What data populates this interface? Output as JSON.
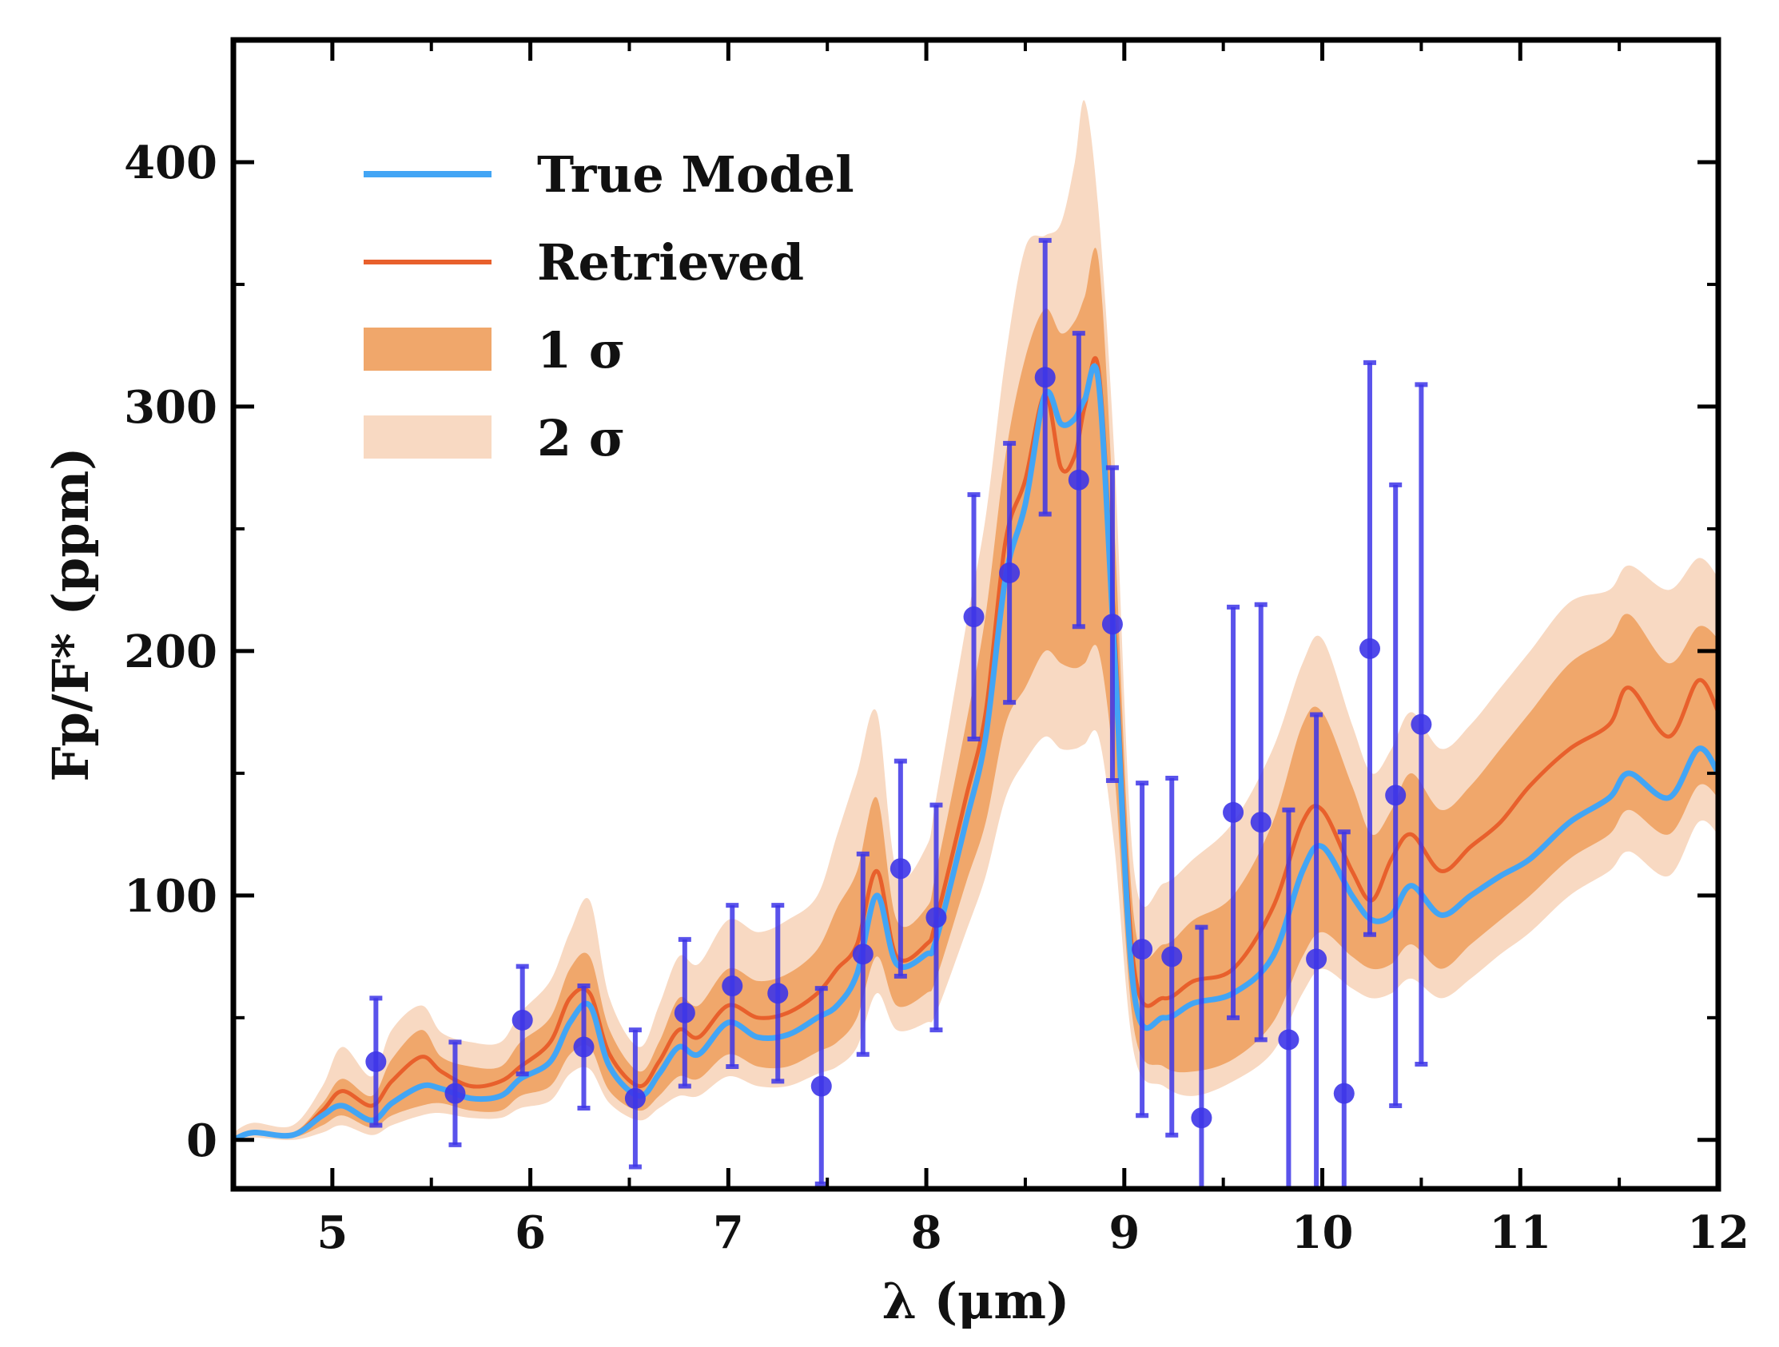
{
  "chart_data": {
    "type": "line",
    "xlabel": "λ (μm)",
    "ylabel": "Fp/F* (ppm)",
    "xlim": [
      4.5,
      12
    ],
    "ylim": [
      -20,
      450
    ],
    "x_ticks": [
      5,
      6,
      7,
      8,
      9,
      10,
      11,
      12
    ],
    "y_ticks": [
      0,
      100,
      200,
      300,
      400
    ],
    "grid": false,
    "legend_position": "top-left",
    "legend": [
      "True Model",
      "Retrieved",
      "1 σ",
      "2 σ"
    ],
    "colors": {
      "true_model": "#42a5f5",
      "retrieved": "#e8602c",
      "sigma1": "#f0a76b",
      "sigma2": "#f8d9c2",
      "data": "#3d35e8"
    },
    "series": [
      {
        "name": "True Model",
        "x": [
          4.5,
          4.6,
          4.8,
          4.95,
          5.05,
          5.2,
          5.3,
          5.45,
          5.55,
          5.7,
          5.85,
          5.95,
          6.1,
          6.2,
          6.3,
          6.4,
          6.55,
          6.65,
          6.75,
          6.85,
          7.0,
          7.15,
          7.3,
          7.45,
          7.55,
          7.65,
          7.75,
          7.85,
          8.0,
          8.05,
          8.2,
          8.3,
          8.4,
          8.5,
          8.6,
          8.68,
          8.75,
          8.8,
          8.87,
          8.95,
          9.05,
          9.2,
          9.35,
          9.55,
          9.75,
          9.9,
          10.0,
          10.15,
          10.25,
          10.35,
          10.45,
          10.6,
          10.75,
          10.9,
          11.05,
          11.25,
          11.45,
          11.55,
          11.75,
          11.9,
          12.0
        ],
        "values": [
          0,
          3,
          2,
          10,
          14,
          8,
          15,
          22,
          21,
          17,
          18,
          25,
          32,
          48,
          55,
          30,
          18,
          27,
          38,
          35,
          48,
          42,
          43,
          50,
          55,
          68,
          100,
          72,
          76,
          82,
          130,
          165,
          230,
          260,
          305,
          293,
          295,
          303,
          310,
          200,
          60,
          50,
          56,
          60,
          75,
          110,
          120,
          100,
          90,
          92,
          104,
          92,
          100,
          108,
          115,
          130,
          140,
          150,
          140,
          160,
          150
        ]
      },
      {
        "name": "Retrieved",
        "x": [
          4.5,
          4.6,
          4.8,
          4.95,
          5.05,
          5.2,
          5.3,
          5.45,
          5.55,
          5.7,
          5.85,
          5.95,
          6.1,
          6.2,
          6.3,
          6.4,
          6.55,
          6.65,
          6.75,
          6.85,
          7.0,
          7.15,
          7.3,
          7.45,
          7.55,
          7.65,
          7.75,
          7.85,
          8.0,
          8.05,
          8.2,
          8.3,
          8.4,
          8.5,
          8.6,
          8.68,
          8.75,
          8.8,
          8.87,
          8.95,
          9.05,
          9.2,
          9.35,
          9.55,
          9.75,
          9.9,
          10.0,
          10.15,
          10.25,
          10.35,
          10.45,
          10.6,
          10.75,
          10.9,
          11.05,
          11.25,
          11.45,
          11.55,
          11.75,
          11.9,
          12.0
        ],
        "values": [
          0,
          3,
          2,
          12,
          20,
          14,
          24,
          34,
          28,
          22,
          24,
          30,
          40,
          58,
          60,
          35,
          22,
          32,
          45,
          42,
          55,
          50,
          52,
          60,
          70,
          80,
          110,
          75,
          80,
          90,
          140,
          175,
          245,
          270,
          305,
          275,
          280,
          300,
          315,
          210,
          70,
          58,
          65,
          70,
          95,
          130,
          135,
          110,
          98,
          115,
          125,
          110,
          120,
          130,
          145,
          160,
          170,
          185,
          165,
          188,
          175
        ]
      }
    ],
    "bands": [
      {
        "name": "1 σ",
        "x": [
          4.5,
          4.6,
          4.8,
          4.95,
          5.05,
          5.2,
          5.3,
          5.45,
          5.55,
          5.7,
          5.85,
          5.95,
          6.1,
          6.2,
          6.3,
          6.4,
          6.55,
          6.65,
          6.75,
          6.85,
          7.0,
          7.15,
          7.3,
          7.45,
          7.55,
          7.65,
          7.75,
          7.85,
          8.0,
          8.05,
          8.2,
          8.3,
          8.4,
          8.5,
          8.6,
          8.68,
          8.75,
          8.8,
          8.87,
          8.95,
          9.05,
          9.2,
          9.35,
          9.55,
          9.75,
          9.9,
          10.0,
          10.15,
          10.25,
          10.35,
          10.45,
          10.6,
          10.75,
          10.9,
          11.05,
          11.25,
          11.45,
          11.55,
          11.75,
          11.9,
          12.0
        ],
        "lower": [
          0,
          2,
          1,
          6,
          10,
          5,
          10,
          14,
          15,
          12,
          12,
          18,
          22,
          35,
          38,
          20,
          12,
          18,
          26,
          25,
          35,
          30,
          30,
          36,
          40,
          50,
          75,
          55,
          60,
          66,
          105,
          130,
          170,
          185,
          200,
          195,
          193,
          195,
          200,
          150,
          45,
          30,
          28,
          33,
          48,
          75,
          85,
          75,
          70,
          72,
          80,
          70,
          80,
          90,
          100,
          115,
          125,
          135,
          125,
          145,
          140
        ],
        "upper": [
          1,
          4,
          3,
          15,
          25,
          18,
          33,
          45,
          34,
          30,
          30,
          40,
          50,
          70,
          75,
          45,
          28,
          40,
          58,
          55,
          70,
          65,
          68,
          78,
          95,
          110,
          140,
          90,
          95,
          110,
          170,
          215,
          280,
          320,
          340,
          330,
          335,
          345,
          360,
          250,
          90,
          80,
          90,
          100,
          130,
          170,
          175,
          145,
          125,
          135,
          150,
          135,
          145,
          160,
          175,
          195,
          205,
          215,
          195,
          210,
          205
        ]
      },
      {
        "name": "2 σ",
        "x": [
          4.5,
          4.6,
          4.8,
          4.95,
          5.05,
          5.2,
          5.3,
          5.45,
          5.55,
          5.7,
          5.85,
          5.95,
          6.1,
          6.2,
          6.3,
          6.4,
          6.55,
          6.65,
          6.75,
          6.85,
          7.0,
          7.15,
          7.3,
          7.45,
          7.55,
          7.65,
          7.75,
          7.85,
          8.0,
          8.05,
          8.2,
          8.3,
          8.4,
          8.5,
          8.6,
          8.68,
          8.75,
          8.8,
          8.87,
          8.95,
          9.05,
          9.2,
          9.35,
          9.55,
          9.75,
          9.9,
          10.0,
          10.15,
          10.25,
          10.35,
          10.45,
          10.6,
          10.75,
          10.9,
          11.05,
          11.25,
          11.45,
          11.55,
          11.75,
          11.9,
          12.0
        ],
        "lower": [
          0,
          1,
          0,
          3,
          6,
          2,
          6,
          10,
          11,
          9,
          9,
          13,
          16,
          27,
          29,
          15,
          8,
          13,
          18,
          18,
          26,
          22,
          22,
          27,
          30,
          38,
          60,
          45,
          48,
          52,
          85,
          108,
          140,
          155,
          165,
          160,
          160,
          162,
          165,
          120,
          35,
          22,
          18,
          24,
          36,
          60,
          70,
          62,
          58,
          60,
          66,
          58,
          66,
          76,
          85,
          100,
          110,
          118,
          108,
          130,
          125
        ],
        "upper": [
          3,
          7,
          6,
          22,
          38,
          26,
          45,
          55,
          44,
          40,
          40,
          52,
          65,
          85,
          98,
          58,
          38,
          55,
          75,
          72,
          90,
          85,
          90,
          100,
          125,
          150,
          175,
          110,
          120,
          140,
          210,
          255,
          320,
          365,
          370,
          375,
          400,
          425,
          380,
          280,
          110,
          105,
          115,
          130,
          160,
          195,
          205,
          170,
          150,
          160,
          175,
          160,
          170,
          185,
          200,
          220,
          225,
          235,
          225,
          238,
          230
        ]
      }
    ],
    "data_points": {
      "x": [
        5.22,
        5.62,
        5.96,
        6.27,
        6.53,
        6.78,
        7.02,
        7.25,
        7.47,
        7.68,
        7.87,
        8.05,
        8.24,
        8.42,
        8.6,
        8.77,
        8.94,
        9.09,
        9.24,
        9.39,
        9.55,
        9.69,
        9.83,
        9.97,
        10.11,
        10.24,
        10.37,
        10.5
      ],
      "y": [
        32,
        19,
        49,
        38,
        17,
        52,
        63,
        60,
        22,
        76,
        111,
        91,
        214,
        232,
        312,
        270,
        211,
        78,
        75,
        9,
        134,
        130,
        41,
        74,
        19,
        201,
        141,
        170
      ],
      "err": [
        26,
        21,
        22,
        25,
        28,
        30,
        33,
        36,
        40,
        41,
        44,
        46,
        50,
        53,
        56,
        60,
        64,
        68,
        73,
        78,
        84,
        89,
        94,
        100,
        107,
        117,
        127,
        139
      ]
    }
  }
}
